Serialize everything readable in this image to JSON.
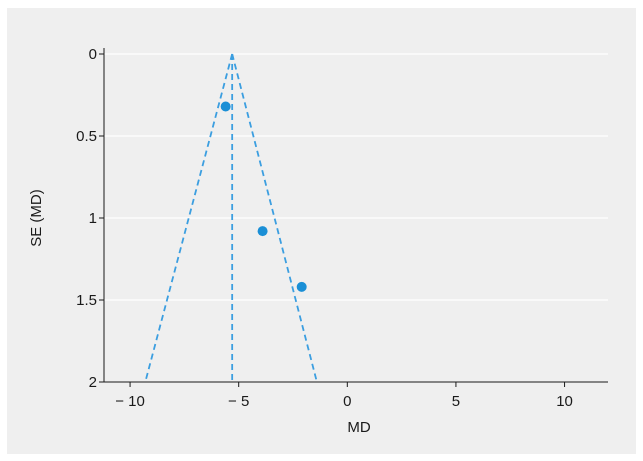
{
  "chart_data": {
    "type": "scatter",
    "title": "",
    "xlabel": "MD",
    "ylabel": "SE (MD)",
    "xlim": [
      -11.2,
      12
    ],
    "ylim": [
      2,
      0
    ],
    "y_inverted": true,
    "x_ticks": [
      -10,
      -5,
      0,
      5,
      10
    ],
    "x_tick_labels": [
      "− 10",
      "− 5",
      "0",
      "5",
      "10"
    ],
    "y_ticks": [
      0,
      0.5,
      1,
      1.5,
      2
    ],
    "y_tick_labels": [
      "0",
      "0.5",
      "1",
      "1.5",
      "2"
    ],
    "grid": "horizontal",
    "legend": "none",
    "points": [
      {
        "x": -5.6,
        "y": 0.32
      },
      {
        "x": -3.9,
        "y": 1.08
      },
      {
        "x": -2.1,
        "y": 1.42
      }
    ],
    "pooled_estimate_md": -5.3,
    "funnel_bounds": {
      "apex": {
        "x": -5.3,
        "y": 0
      },
      "left_base": {
        "x": -9.3,
        "y": 2
      },
      "right_base": {
        "x": -1.4,
        "y": 2
      }
    },
    "colors": {
      "panel_background": "#efefef",
      "gridline": "#ffffff",
      "axis": "#1a1a1a",
      "points": "#1a8fd6",
      "funnel_lines": "#3b9ee0"
    }
  }
}
